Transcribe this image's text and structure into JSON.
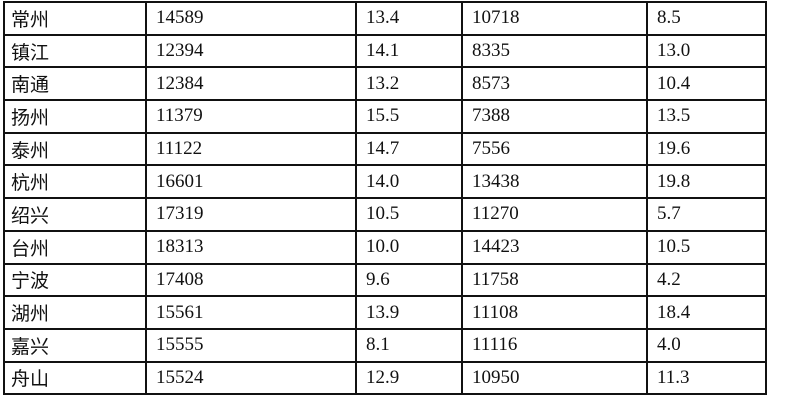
{
  "table": {
    "rows": [
      [
        "常州",
        "14589",
        "13.4",
        "10718",
        "8.5"
      ],
      [
        "镇江",
        "12394",
        "14.1",
        "8335",
        "13.0"
      ],
      [
        "南通",
        "12384",
        "13.2",
        "8573",
        "10.4"
      ],
      [
        "扬州",
        "11379",
        "15.5",
        "7388",
        "13.5"
      ],
      [
        "泰州",
        "11122",
        "14.7",
        "7556",
        "19.6"
      ],
      [
        "杭州",
        "16601",
        "14.0",
        "13438",
        "19.8"
      ],
      [
        "绍兴",
        "17319",
        "10.5",
        "11270",
        "5.7"
      ],
      [
        "台州",
        "18313",
        "10.0",
        "14423",
        "10.5"
      ],
      [
        "宁波",
        "17408",
        "9.6",
        "11758",
        "4.2"
      ],
      [
        "湖州",
        "15561",
        "13.9",
        "11108",
        "18.4"
      ],
      [
        "嘉兴",
        "15555",
        "8.1",
        "11116",
        "4.0"
      ],
      [
        "舟山",
        "15524",
        "12.9",
        "10950",
        "11.3"
      ]
    ]
  }
}
